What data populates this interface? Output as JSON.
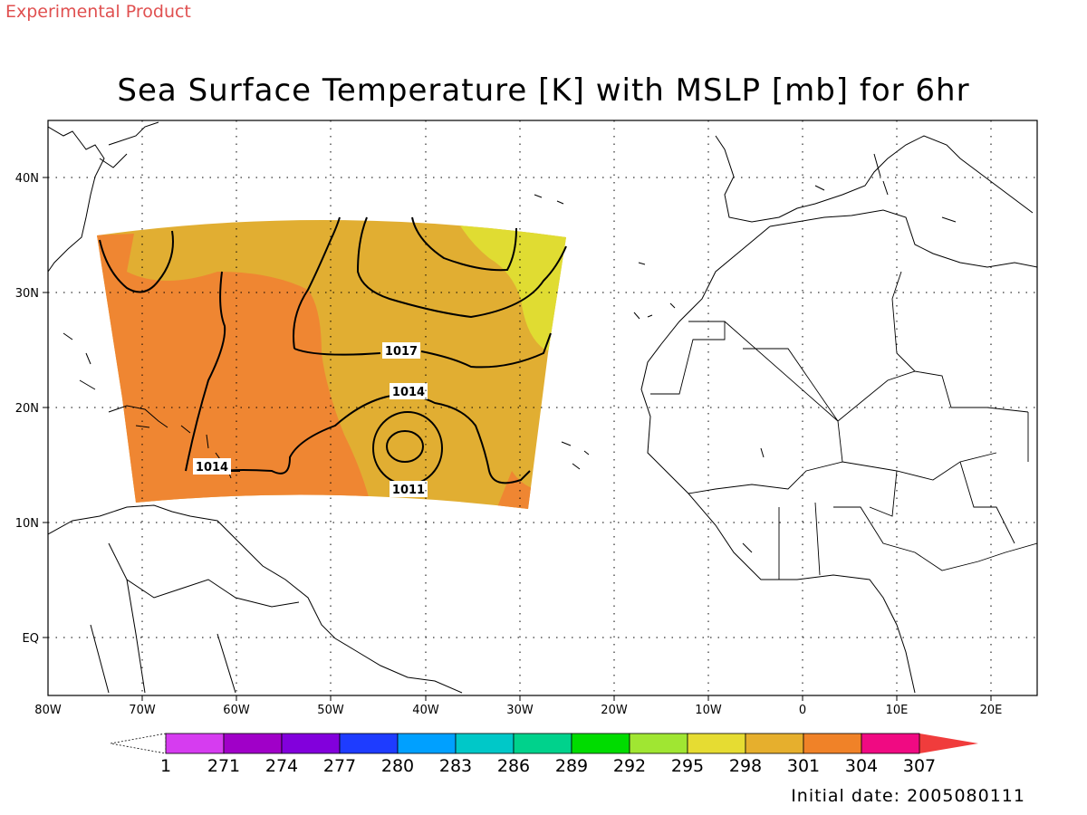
{
  "header": {
    "experimental_label": "Experimental Product",
    "title": "Sea Surface Temperature [K] with MSLP [mb] for 6hr"
  },
  "footer": {
    "initial_date": "Initial date: 2005080111"
  },
  "map": {
    "lon_range": [
      -80,
      25
    ],
    "lat_range": [
      -5,
      45
    ],
    "x_tick_labels": [
      "80W",
      "70W",
      "60W",
      "50W",
      "40W",
      "30W",
      "20W",
      "10W",
      "0",
      "10E",
      "20E"
    ],
    "y_tick_labels": [
      "40N",
      "30N",
      "20N",
      "10N",
      "EQ"
    ],
    "grid": "dotted",
    "contour_labels": [
      "1017",
      "1014",
      "1011",
      "1014"
    ],
    "colors": {
      "sst_298": "#e0dc32",
      "sst_301": "#e1ae32",
      "sst_304": "#ef8632"
    }
  },
  "colorbar": {
    "labels": [
      "1",
      "271",
      "274",
      "277",
      "280",
      "283",
      "286",
      "289",
      "292",
      "295",
      "298",
      "301",
      "304",
      "307"
    ],
    "colors": [
      "#d63cf0",
      "#a000c8",
      "#8200dc",
      "#1e3cff",
      "#00a0ff",
      "#00c8c8",
      "#00d28c",
      "#00dc00",
      "#a0e632",
      "#e6dc32",
      "#e6af2d",
      "#f08228",
      "#f00a82",
      "#f03c3c"
    ]
  }
}
